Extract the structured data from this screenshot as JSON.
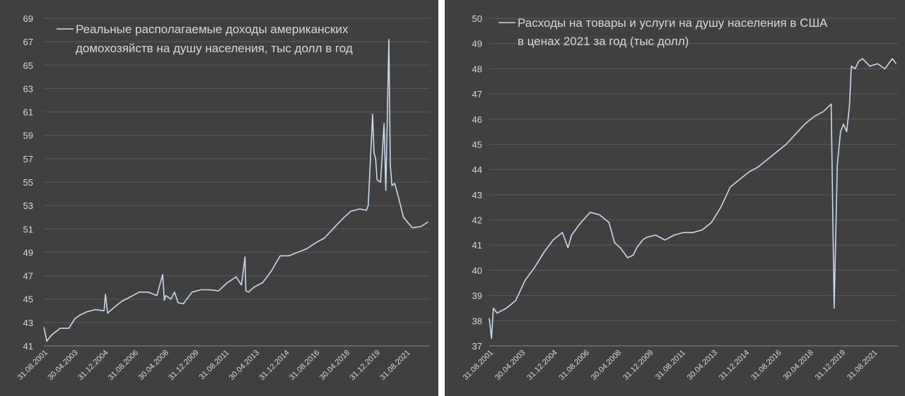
{
  "chart_data": [
    {
      "type": "line",
      "title": "",
      "xlabel": "",
      "ylabel": "",
      "ylim": [
        41,
        69
      ],
      "yticks": [
        41,
        43,
        45,
        47,
        49,
        51,
        53,
        55,
        57,
        59,
        61,
        63,
        65,
        67,
        69
      ],
      "grid": true,
      "legend_position": "top-left",
      "x_tick_labels": [
        "31.08.2001",
        "30.04.2003",
        "31.12.2004",
        "31.08.2006",
        "30.04.2008",
        "31.12.2009",
        "31.08.2011",
        "30.04.2013",
        "31.12.2014",
        "31.08.2016",
        "30.04.2018",
        "31.12.2019",
        "31.08.2021"
      ],
      "series": [
        {
          "name_lines": [
            "Реальные располагаемые доходы американских",
            "домохозяйств на душу населения, тыс долл в год"
          ],
          "color": "#c9d9ee",
          "x": [
            2001.58,
            2001.75,
            2002.0,
            2002.5,
            2003.0,
            2003.33,
            2003.6,
            2004.0,
            2004.5,
            2005.0,
            2005.08,
            2005.2,
            2005.5,
            2006.0,
            2006.5,
            2007.0,
            2007.5,
            2008.0,
            2008.33,
            2008.42,
            2008.5,
            2008.8,
            2009.0,
            2009.2,
            2009.5,
            2010.0,
            2010.5,
            2011.0,
            2011.5,
            2012.0,
            2012.5,
            2012.8,
            2013.0,
            2013.05,
            2013.2,
            2013.5,
            2014.0,
            2014.5,
            2015.0,
            2015.5,
            2016.0,
            2016.5,
            2017.0,
            2017.5,
            2018.0,
            2018.5,
            2019.0,
            2019.5,
            2019.9,
            2020.0,
            2020.25,
            2020.33,
            2020.42,
            2020.5,
            2020.7,
            2020.9,
            2021.0,
            2021.17,
            2021.25,
            2021.35,
            2021.5,
            2021.7,
            2022.0,
            2022.5,
            2023.0,
            2023.4
          ],
          "y": [
            42.6,
            41.4,
            41.9,
            42.5,
            42.5,
            43.3,
            43.6,
            43.9,
            44.1,
            44.0,
            45.4,
            43.8,
            44.2,
            44.8,
            45.2,
            45.6,
            45.6,
            45.3,
            47.1,
            44.9,
            45.3,
            45.0,
            45.6,
            44.7,
            44.6,
            45.6,
            45.8,
            45.8,
            45.7,
            46.4,
            46.9,
            46.2,
            48.6,
            45.7,
            45.6,
            46.0,
            46.4,
            47.4,
            48.7,
            48.7,
            49.0,
            49.3,
            49.8,
            50.2,
            51.0,
            51.8,
            52.5,
            52.7,
            52.6,
            53.0,
            60.8,
            57.5,
            57.0,
            55.2,
            55.0,
            60.0,
            54.3,
            67.2,
            56.5,
            54.7,
            54.9,
            53.8,
            52.0,
            51.1,
            51.2,
            51.6
          ]
        }
      ]
    },
    {
      "type": "line",
      "title": "",
      "xlabel": "",
      "ylabel": "",
      "ylim": [
        37,
        50
      ],
      "yticks": [
        37,
        38,
        39,
        40,
        41,
        42,
        43,
        44,
        45,
        46,
        47,
        48,
        49,
        50
      ],
      "grid": true,
      "legend_position": "top-left",
      "x_tick_labels": [
        "31.08.2001",
        "30.04.2003",
        "31.12.2004",
        "31.08.2006",
        "30.04.2008",
        "31.12.2009",
        "31.08.2011",
        "30.04.2013",
        "31.12.2014",
        "31.08.2016",
        "30.04.2018",
        "31.12.2019",
        "31.08.2021"
      ],
      "series": [
        {
          "name_lines": [
            "Расходы на товары и услуги на душу населения в США",
            "в ценах 2021 за год (тыс долл)"
          ],
          "color": "#c9d9ee",
          "x": [
            2001.58,
            2001.7,
            2001.8,
            2002.0,
            2002.5,
            2003.0,
            2003.5,
            2004.0,
            2004.5,
            2005.0,
            2005.5,
            2005.8,
            2006.0,
            2006.5,
            2007.0,
            2007.5,
            2008.0,
            2008.3,
            2008.6,
            2009.0,
            2009.3,
            2009.5,
            2009.8,
            2010.0,
            2010.5,
            2011.0,
            2011.5,
            2012.0,
            2012.5,
            2013.0,
            2013.5,
            2014.0,
            2014.5,
            2015.0,
            2015.5,
            2016.0,
            2016.5,
            2017.0,
            2017.5,
            2018.0,
            2018.5,
            2019.0,
            2019.5,
            2019.92,
            2020.08,
            2020.25,
            2020.42,
            2020.58,
            2020.75,
            2020.9,
            2021.0,
            2021.2,
            2021.4,
            2021.6,
            2022.0,
            2022.4,
            2022.8,
            2023.2,
            2023.4
          ],
          "y": [
            38.1,
            37.3,
            38.5,
            38.3,
            38.5,
            38.8,
            39.6,
            40.1,
            40.7,
            41.2,
            41.5,
            40.9,
            41.4,
            41.9,
            42.3,
            42.2,
            41.9,
            41.1,
            40.9,
            40.5,
            40.6,
            40.9,
            41.2,
            41.3,
            41.4,
            41.2,
            41.4,
            41.5,
            41.5,
            41.6,
            41.9,
            42.5,
            43.3,
            43.6,
            43.9,
            44.1,
            44.4,
            44.7,
            45.0,
            45.4,
            45.8,
            46.1,
            46.3,
            46.6,
            38.5,
            44.2,
            45.5,
            45.8,
            45.5,
            46.5,
            48.1,
            48.0,
            48.3,
            48.4,
            48.1,
            48.2,
            48.0,
            48.4,
            48.2
          ]
        }
      ]
    }
  ]
}
